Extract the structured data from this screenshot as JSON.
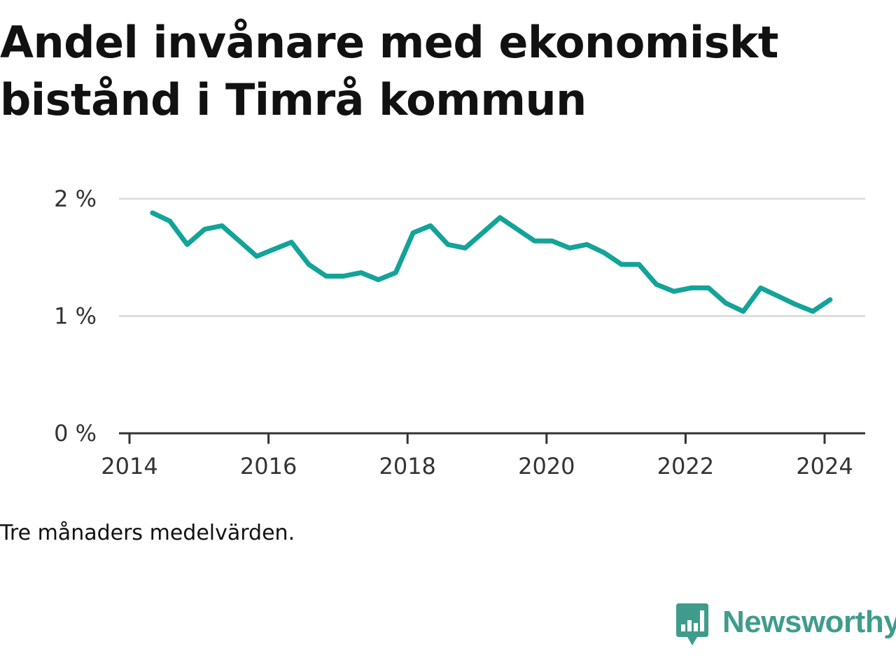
{
  "title": "Andel invånare med ekonomiskt bistånd i Timrå kommun",
  "note": "Tre månaders medelvärden.",
  "brand": {
    "name": "Newsworthy",
    "color": "#3f9c8c",
    "icon": "bar-chart-speech-bubble-icon"
  },
  "colors": {
    "line": "#13a399",
    "grid": "#dddddd",
    "axis": "#333333"
  },
  "chart_data": {
    "type": "line",
    "title": "Andel invånare med ekonomiskt bistånd i Timrå kommun",
    "xlabel": "",
    "ylabel": "",
    "ylim": [
      0,
      2
    ],
    "y_ticks": [
      0,
      1,
      2
    ],
    "y_tick_labels": [
      "0 %",
      "1 %",
      "2 %"
    ],
    "xlim": [
      2014,
      2024.6
    ],
    "x_ticks": [
      2014,
      2016,
      2018,
      2020,
      2022,
      2024
    ],
    "x_tick_labels": [
      "2014",
      "2016",
      "2018",
      "2020",
      "2022",
      "2024"
    ],
    "grid": true,
    "legend": "none",
    "series": [
      {
        "x": [
          2014.33,
          2014.58,
          2014.83,
          2015.08,
          2015.33,
          2015.58,
          2015.83,
          2016.08,
          2016.33,
          2016.58,
          2016.83,
          2017.08,
          2017.33,
          2017.58,
          2017.83,
          2018.08,
          2018.33,
          2018.58,
          2018.83,
          2019.08,
          2019.33,
          2019.58,
          2019.83,
          2020.08,
          2020.33,
          2020.58,
          2020.83,
          2021.08,
          2021.33,
          2021.58,
          2021.83,
          2022.08,
          2022.33,
          2022.58,
          2022.83,
          2023.08,
          2023.33,
          2023.58,
          2023.83,
          2024.08
        ],
        "values": [
          1.88,
          1.81,
          1.61,
          1.74,
          1.77,
          1.64,
          1.51,
          1.57,
          1.63,
          1.44,
          1.34,
          1.34,
          1.37,
          1.31,
          1.37,
          1.71,
          1.77,
          1.61,
          1.58,
          1.71,
          1.84,
          1.74,
          1.64,
          1.64,
          1.58,
          1.61,
          1.54,
          1.44,
          1.44,
          1.27,
          1.21,
          1.24,
          1.24,
          1.11,
          1.04,
          1.24,
          1.17,
          1.1,
          1.04,
          1.14
        ]
      }
    ]
  }
}
